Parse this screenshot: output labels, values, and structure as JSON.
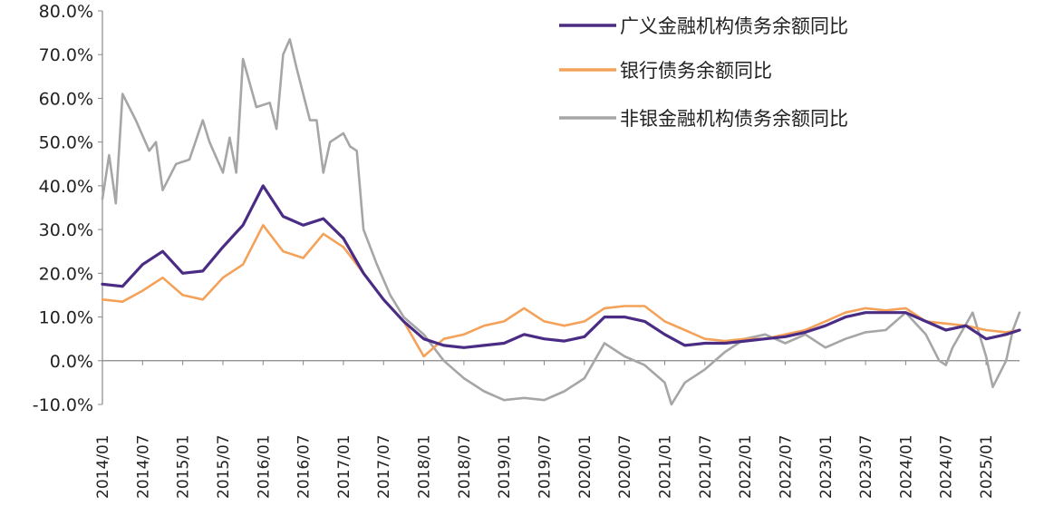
{
  "chart_data": {
    "type": "line",
    "title": "",
    "xlabel": "",
    "ylabel": "",
    "ylim": [
      -10,
      80
    ],
    "yticks": [
      "80.0%",
      "70.0%",
      "60.0%",
      "50.0%",
      "40.0%",
      "30.0%",
      "20.0%",
      "10.0%",
      "0.0%",
      "-10.0%"
    ],
    "xticks": [
      "2014/01",
      "2014/07",
      "2015/01",
      "2015/07",
      "2016/01",
      "2016/07",
      "2017/01",
      "2017/07",
      "2018/01",
      "2018/07",
      "2019/01",
      "2019/07",
      "2020/01",
      "2020/07",
      "2021/01",
      "2021/07",
      "2022/01",
      "2022/07",
      "2023/01",
      "2023/07",
      "2024/01",
      "2024/07",
      "2025/01"
    ],
    "grid": false,
    "legend_position": "top-right",
    "series": [
      {
        "name": "广义金融机构债务余额同比",
        "color": "#4B2C84",
        "points": [
          [
            "2014/01",
            17.5
          ],
          [
            "2014/04",
            17.0
          ],
          [
            "2014/07",
            22
          ],
          [
            "2014/10",
            25
          ],
          [
            "2015/01",
            20
          ],
          [
            "2015/04",
            20.5
          ],
          [
            "2015/07",
            26
          ],
          [
            "2015/10",
            31
          ],
          [
            "2016/01",
            40
          ],
          [
            "2016/04",
            33
          ],
          [
            "2016/07",
            31
          ],
          [
            "2016/10",
            32.5
          ],
          [
            "2017/01",
            28
          ],
          [
            "2017/04",
            20
          ],
          [
            "2017/07",
            14
          ],
          [
            "2017/10",
            9
          ],
          [
            "2018/01",
            5
          ],
          [
            "2018/04",
            3.5
          ],
          [
            "2018/07",
            3
          ],
          [
            "2018/10",
            3.5
          ],
          [
            "2019/01",
            4
          ],
          [
            "2019/04",
            6
          ],
          [
            "2019/07",
            5
          ],
          [
            "2019/10",
            4.5
          ],
          [
            "2020/01",
            5.5
          ],
          [
            "2020/04",
            10
          ],
          [
            "2020/07",
            10
          ],
          [
            "2020/10",
            9
          ],
          [
            "2021/01",
            6
          ],
          [
            "2021/04",
            3.5
          ],
          [
            "2021/07",
            4
          ],
          [
            "2021/10",
            4
          ],
          [
            "2022/01",
            4.5
          ],
          [
            "2022/04",
            5
          ],
          [
            "2022/07",
            5.5
          ],
          [
            "2022/10",
            6.5
          ],
          [
            "2023/01",
            8
          ],
          [
            "2023/04",
            10
          ],
          [
            "2023/07",
            11
          ],
          [
            "2023/10",
            11
          ],
          [
            "2024/01",
            11
          ],
          [
            "2024/04",
            9
          ],
          [
            "2024/07",
            7
          ],
          [
            "2024/10",
            8
          ],
          [
            "2025/01",
            5
          ],
          [
            "2025/04",
            6
          ],
          [
            "2025/06",
            7
          ]
        ]
      },
      {
        "name": "银行债务余额同比",
        "color": "#F4A259",
        "points": [
          [
            "2014/01",
            14
          ],
          [
            "2014/04",
            13.5
          ],
          [
            "2014/07",
            16
          ],
          [
            "2014/10",
            19
          ],
          [
            "2015/01",
            15
          ],
          [
            "2015/04",
            14
          ],
          [
            "2015/07",
            19
          ],
          [
            "2015/10",
            22
          ],
          [
            "2016/01",
            31
          ],
          [
            "2016/04",
            25
          ],
          [
            "2016/07",
            23.5
          ],
          [
            "2016/10",
            29
          ],
          [
            "2017/01",
            26
          ],
          [
            "2017/04",
            20
          ],
          [
            "2017/07",
            14
          ],
          [
            "2017/10",
            9
          ],
          [
            "2018/01",
            1
          ],
          [
            "2018/04",
            5
          ],
          [
            "2018/07",
            6
          ],
          [
            "2018/10",
            8
          ],
          [
            "2019/01",
            9
          ],
          [
            "2019/04",
            12
          ],
          [
            "2019/07",
            9
          ],
          [
            "2019/10",
            8
          ],
          [
            "2020/01",
            9
          ],
          [
            "2020/04",
            12
          ],
          [
            "2020/07",
            12.5
          ],
          [
            "2020/10",
            12.5
          ],
          [
            "2021/01",
            9
          ],
          [
            "2021/04",
            7
          ],
          [
            "2021/07",
            5
          ],
          [
            "2021/10",
            4.5
          ],
          [
            "2022/01",
            5
          ],
          [
            "2022/04",
            5
          ],
          [
            "2022/07",
            6
          ],
          [
            "2022/10",
            7
          ],
          [
            "2023/01",
            9
          ],
          [
            "2023/04",
            11
          ],
          [
            "2023/07",
            12
          ],
          [
            "2023/10",
            11.5
          ],
          [
            "2024/01",
            12
          ],
          [
            "2024/04",
            9
          ],
          [
            "2024/07",
            8.5
          ],
          [
            "2024/10",
            8
          ],
          [
            "2025/01",
            7
          ],
          [
            "2025/04",
            6.5
          ],
          [
            "2025/06",
            7
          ]
        ]
      },
      {
        "name": "非银金融机构债务余额同比",
        "color": "#A6A6A6",
        "points": [
          [
            "2014/01",
            37
          ],
          [
            "2014/02",
            47
          ],
          [
            "2014/03",
            36
          ],
          [
            "2014/04",
            61
          ],
          [
            "2014/06",
            55
          ],
          [
            "2014/08",
            48
          ],
          [
            "2014/09",
            50
          ],
          [
            "2014/10",
            39
          ],
          [
            "2014/12",
            45
          ],
          [
            "2015/02",
            46
          ],
          [
            "2015/04",
            55
          ],
          [
            "2015/05",
            50
          ],
          [
            "2015/07",
            43
          ],
          [
            "2015/08",
            51
          ],
          [
            "2015/09",
            43
          ],
          [
            "2015/10",
            69
          ],
          [
            "2015/12",
            58
          ],
          [
            "2016/02",
            59
          ],
          [
            "2016/03",
            53
          ],
          [
            "2016/04",
            70
          ],
          [
            "2016/05",
            73.5
          ],
          [
            "2016/06",
            67
          ],
          [
            "2016/08",
            55
          ],
          [
            "2016/09",
            55
          ],
          [
            "2016/10",
            43
          ],
          [
            "2016/11",
            50
          ],
          [
            "2017/01",
            52
          ],
          [
            "2017/02",
            49
          ],
          [
            "2017/03",
            48
          ],
          [
            "2017/04",
            30
          ],
          [
            "2017/06",
            22
          ],
          [
            "2017/08",
            15
          ],
          [
            "2017/10",
            10
          ],
          [
            "2018/01",
            6
          ],
          [
            "2018/04",
            0
          ],
          [
            "2018/07",
            -4
          ],
          [
            "2018/10",
            -7
          ],
          [
            "2019/01",
            -9
          ],
          [
            "2019/04",
            -8.5
          ],
          [
            "2019/07",
            -9
          ],
          [
            "2019/10",
            -7
          ],
          [
            "2020/01",
            -4
          ],
          [
            "2020/04",
            4
          ],
          [
            "2020/07",
            1
          ],
          [
            "2020/10",
            -1
          ],
          [
            "2021/01",
            -5
          ],
          [
            "2021/02",
            -10
          ],
          [
            "2021/04",
            -5
          ],
          [
            "2021/07",
            -2
          ],
          [
            "2021/10",
            2
          ],
          [
            "2022/01",
            5
          ],
          [
            "2022/04",
            6
          ],
          [
            "2022/07",
            4
          ],
          [
            "2022/10",
            6
          ],
          [
            "2023/01",
            3
          ],
          [
            "2023/04",
            5
          ],
          [
            "2023/07",
            6.5
          ],
          [
            "2023/10",
            7
          ],
          [
            "2024/01",
            11
          ],
          [
            "2024/04",
            6
          ],
          [
            "2024/06",
            0
          ],
          [
            "2024/07",
            -1
          ],
          [
            "2024/08",
            3
          ],
          [
            "2024/11",
            11
          ],
          [
            "2025/01",
            1
          ],
          [
            "2025/02",
            -6
          ],
          [
            "2025/04",
            0
          ],
          [
            "2025/05",
            7
          ],
          [
            "2025/06",
            11
          ]
        ]
      }
    ]
  }
}
